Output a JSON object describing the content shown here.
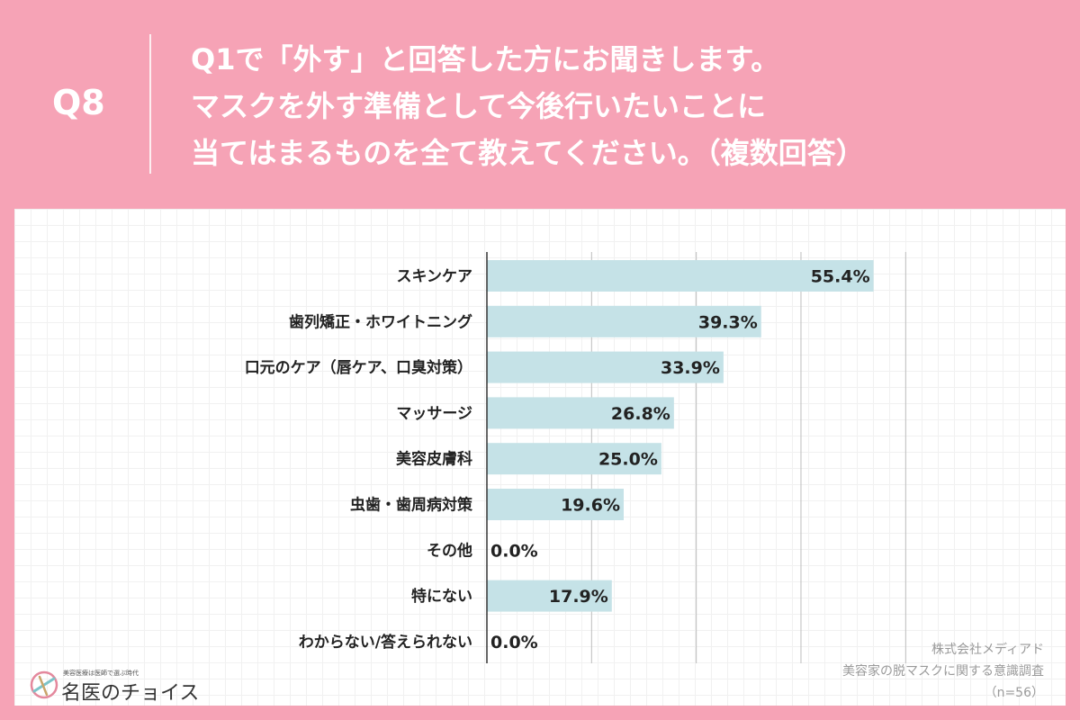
{
  "header": {
    "question_number": "Q8",
    "question_lines": [
      "Q1で「外す」と回答した方にお聞きします。",
      "マスクを外す準備として今後行いたいことに",
      "当てはまるものを全て教えてください。（複数回答）"
    ]
  },
  "chart_data": {
    "type": "bar",
    "orientation": "horizontal",
    "categories": [
      "スキンケア",
      "歯列矯正・ホワイトニング",
      "口元のケア（唇ケア、口臭対策）",
      "マッサージ",
      "美容皮膚科",
      "虫歯・歯周病対策",
      "その他",
      "特にない",
      "わからない/答えられない"
    ],
    "values": [
      55.4,
      39.3,
      33.9,
      26.8,
      25.0,
      19.6,
      0.0,
      17.9,
      0.0
    ],
    "value_labels": [
      "55.4%",
      "39.3%",
      "33.9%",
      "26.8%",
      "25.0%",
      "19.6%",
      "0.0%",
      "17.9%",
      "0.0%"
    ],
    "xlim": [
      0,
      60
    ],
    "gridlines": [
      15,
      30,
      45,
      60
    ],
    "bar_color": "#c5e2e7"
  },
  "footer": {
    "logo_tagline": "美容医療は医師で選ぶ時代",
    "logo_name": "名医のチョイス",
    "source_lines": [
      "株式会社メディアド",
      "美容家の脱マスクに関する意識調査",
      "（n=56）"
    ]
  },
  "colors": {
    "background": "#f6a3b6",
    "panel": "#ffffff",
    "bar": "#c5e2e7",
    "text": "#222222"
  }
}
